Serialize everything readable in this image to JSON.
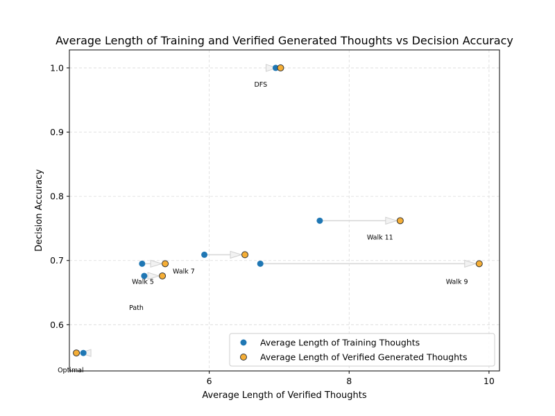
{
  "chart_data": {
    "type": "scatter",
    "title": "Average Length of Training and Verified Generated Thoughts vs Decision Accuracy",
    "xlabel": "Average Length of Verified Thoughts",
    "ylabel": "Decision Accuracy",
    "xlim": [
      4.0,
      10.15
    ],
    "ylim": [
      0.528,
      1.028
    ],
    "xticks": [
      6,
      8,
      10
    ],
    "xtick_labels": [
      "6",
      "8",
      "10"
    ],
    "yticks": [
      0.6,
      0.7,
      0.8,
      0.9,
      1.0
    ],
    "ytick_labels": [
      "0.6",
      "0.7",
      "0.8",
      "0.9",
      "1.0"
    ],
    "grid": true,
    "legend_position": "bottom-right",
    "series": [
      {
        "name": "Average Length of Training Thoughts",
        "color": "#1f77b4",
        "edge": "none"
      },
      {
        "name": "Average Length of Verified Generated Thoughts",
        "color": "#f5ae36",
        "edge": "#333333"
      }
    ],
    "points": [
      {
        "label": "DFS",
        "training_x": 6.95,
        "generated_x": 7.02,
        "accuracy": 1.0
      },
      {
        "label": "Walk 11",
        "training_x": 7.58,
        "generated_x": 8.73,
        "accuracy": 0.762
      },
      {
        "label": "Walk 9",
        "training_x": 6.73,
        "generated_x": 9.86,
        "accuracy": 0.695
      },
      {
        "label": "Walk 7",
        "training_x": 5.93,
        "generated_x": 6.51,
        "accuracy": 0.709
      },
      {
        "label": "Walk 5",
        "training_x": 5.04,
        "generated_x": 5.37,
        "accuracy": 0.695
      },
      {
        "label": "Path",
        "training_x": 5.07,
        "generated_x": 5.33,
        "accuracy": 0.676
      },
      {
        "label": "Optimal",
        "training_x": 4.2,
        "generated_x": 4.1,
        "accuracy": 0.556
      }
    ]
  }
}
